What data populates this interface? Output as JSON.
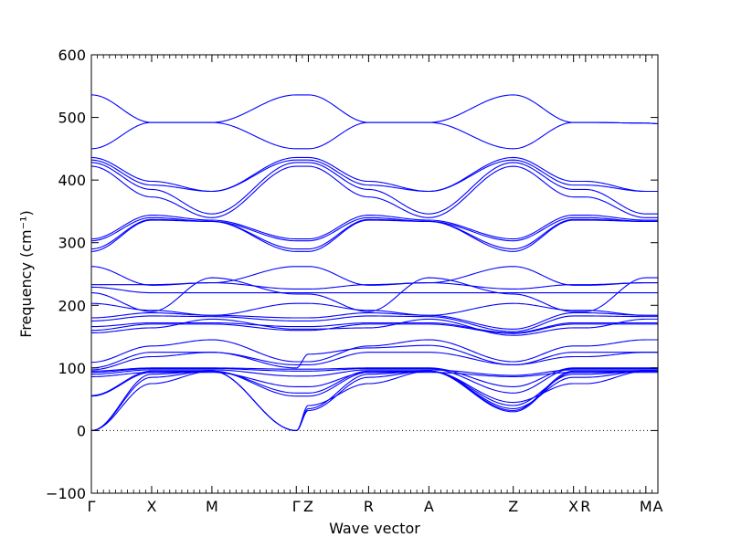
{
  "chart_data": {
    "type": "line",
    "title": "",
    "xlabel": "Wave vector",
    "ylabel": "Frequency (cm⁻¹)",
    "ylim": [
      -100,
      600
    ],
    "yticks": [
      -100,
      0,
      100,
      200,
      300,
      400,
      500,
      600
    ],
    "ytick_labels": [
      "−100",
      "0",
      "100",
      "200",
      "300",
      "400",
      "500",
      "600"
    ],
    "grid": false,
    "zero_line": {
      "y": 0,
      "style": "dotted"
    },
    "line_color": "#0000ff",
    "high_symmetry_points": [
      {
        "label": "Γ",
        "x": 0.0
      },
      {
        "label": "X",
        "x": 0.5
      },
      {
        "label": "M",
        "x": 1.0
      },
      {
        "label": "Γ",
        "x": 1.7
      },
      {
        "label": "Z",
        "x": 1.8
      },
      {
        "label": "R",
        "x": 2.3
      },
      {
        "label": "A",
        "x": 2.8
      },
      {
        "label": "Z",
        "x": 3.5
      },
      {
        "label": "X",
        "x": 4.0
      },
      {
        "label": "R",
        "x": 4.1
      },
      {
        "label": "M",
        "x": 4.6
      },
      {
        "label": "A",
        "x": 4.7
      }
    ],
    "series": [
      {
        "x": [
          0,
          0.5,
          1,
          1.7,
          1.8,
          2.3,
          2.8,
          3.5,
          4,
          4.1,
          4.6,
          4.7
        ],
        "values": [
          536,
          492,
          492,
          536,
          536,
          492,
          492,
          536,
          492,
          492,
          491,
          490
        ]
      },
      {
        "x": [
          0,
          0.5,
          1,
          1.7,
          1.8,
          2.3,
          2.8,
          3.5,
          4,
          4.1,
          4.6,
          4.7
        ],
        "values": [
          450,
          492,
          492,
          450,
          450,
          492,
          492,
          450,
          492,
          492,
          491,
          490
        ]
      },
      {
        "x": [
          0,
          0.5,
          1,
          1.7,
          1.8,
          2.3,
          2.8,
          3.5,
          4,
          4.1,
          4.6,
          4.7
        ],
        "values": [
          436,
          398,
          382,
          436,
          436,
          398,
          382,
          436,
          398,
          398,
          382,
          382
        ]
      },
      {
        "x": [
          0,
          0.5,
          1,
          1.7,
          1.8,
          2.3,
          2.8,
          3.5,
          4,
          4.1,
          4.6,
          4.7
        ],
        "values": [
          432,
          392,
          382,
          432,
          432,
          392,
          382,
          432,
          392,
          392,
          382,
          382
        ]
      },
      {
        "x": [
          0,
          0.5,
          1,
          1.7,
          1.8,
          2.3,
          2.8,
          3.5,
          4,
          4.1,
          4.6,
          4.7
        ],
        "values": [
          428,
          385,
          346,
          428,
          428,
          385,
          346,
          428,
          385,
          385,
          346,
          346
        ]
      },
      {
        "x": [
          0,
          0.5,
          1,
          1.7,
          1.8,
          2.3,
          2.8,
          3.5,
          4,
          4.1,
          4.6,
          4.7
        ],
        "values": [
          422,
          373,
          340,
          422,
          422,
          373,
          340,
          422,
          373,
          373,
          340,
          340
        ]
      },
      {
        "x": [
          0,
          0.5,
          1,
          1.7,
          1.8,
          2.3,
          2.8,
          3.5,
          4,
          4.1,
          4.6,
          4.7
        ],
        "values": [
          306,
          344,
          336,
          306,
          306,
          344,
          336,
          306,
          344,
          344,
          336,
          336
        ]
      },
      {
        "x": [
          0,
          0.5,
          1,
          1.7,
          1.8,
          2.3,
          2.8,
          3.5,
          4,
          4.1,
          4.6,
          4.7
        ],
        "values": [
          303,
          340,
          334,
          303,
          303,
          340,
          334,
          303,
          340,
          340,
          334,
          334
        ]
      },
      {
        "x": [
          0,
          0.5,
          1,
          1.7,
          1.8,
          2.3,
          2.8,
          3.5,
          4,
          4.1,
          4.6,
          4.7
        ],
        "values": [
          290,
          337,
          334,
          290,
          290,
          337,
          334,
          290,
          337,
          337,
          334,
          334
        ]
      },
      {
        "x": [
          0,
          0.5,
          1,
          1.7,
          1.8,
          2.3,
          2.8,
          3.5,
          4,
          4.1,
          4.6,
          4.7
        ],
        "values": [
          286,
          336,
          334,
          286,
          286,
          336,
          334,
          286,
          336,
          336,
          334,
          334
        ]
      },
      {
        "x": [
          0,
          0.5,
          1,
          1.7,
          1.8,
          2.3,
          2.8,
          3.5,
          4,
          4.1,
          4.6,
          4.7
        ],
        "values": [
          262,
          232,
          236,
          262,
          262,
          232,
          236,
          262,
          232,
          232,
          236,
          236
        ]
      },
      {
        "x": [
          0,
          0.5,
          1,
          1.7,
          1.8,
          2.3,
          2.8,
          3.5,
          4,
          4.1,
          4.6,
          4.7
        ],
        "values": [
          233,
          233,
          236,
          226,
          226,
          233,
          236,
          226,
          233,
          233,
          236,
          236
        ]
      },
      {
        "x": [
          0,
          0.5,
          1,
          1.7,
          1.8,
          2.3,
          2.8,
          3.5,
          4,
          4.1,
          4.6,
          4.7
        ],
        "values": [
          229,
          220,
          220,
          220,
          220,
          220,
          220,
          220,
          220,
          220,
          220,
          220
        ]
      },
      {
        "x": [
          0,
          0.5,
          1,
          1.7,
          1.8,
          2.3,
          2.8,
          3.5,
          4,
          4.1,
          4.6,
          4.7
        ],
        "values": [
          220,
          190,
          244,
          218,
          218,
          190,
          244,
          218,
          190,
          190,
          244,
          244
        ]
      },
      {
        "x": [
          0,
          0.5,
          1,
          1.7,
          1.8,
          2.3,
          2.8,
          3.5,
          4,
          4.1,
          4.6,
          4.7
        ],
        "values": [
          203,
          192,
          184,
          203,
          203,
          192,
          184,
          203,
          192,
          192,
          184,
          184
        ]
      },
      {
        "x": [
          0,
          0.5,
          1,
          1.7,
          1.8,
          2.3,
          2.8,
          3.5,
          4,
          4.1,
          4.6,
          4.7
        ],
        "values": [
          180,
          188,
          184,
          180,
          180,
          188,
          184,
          162,
          188,
          188,
          184,
          184
        ]
      },
      {
        "x": [
          0,
          0.5,
          1,
          1.7,
          1.8,
          2.3,
          2.8,
          3.5,
          4,
          4.1,
          4.6,
          4.7
        ],
        "values": [
          175,
          183,
          182,
          175,
          175,
          183,
          182,
          158,
          183,
          183,
          182,
          182
        ]
      },
      {
        "x": [
          0,
          0.5,
          1,
          1.7,
          1.8,
          2.3,
          2.8,
          3.5,
          4,
          4.1,
          4.6,
          4.7
        ],
        "values": [
          166,
          172,
          172,
          166,
          166,
          172,
          172,
          156,
          172,
          172,
          172,
          172
        ]
      },
      {
        "x": [
          0,
          0.5,
          1,
          1.7,
          1.8,
          2.3,
          2.8,
          3.5,
          4,
          4.1,
          4.6,
          4.7
        ],
        "values": [
          160,
          170,
          170,
          160,
          160,
          170,
          170,
          155,
          170,
          170,
          170,
          170
        ]
      },
      {
        "x": [
          0,
          0.5,
          1,
          1.7,
          1.8,
          2.3,
          2.8,
          3.5,
          4,
          4.1,
          4.6,
          4.7
        ],
        "values": [
          156,
          164,
          178,
          162,
          162,
          164,
          178,
          152,
          164,
          164,
          178,
          178
        ]
      },
      {
        "x": [
          0,
          0.5,
          1,
          1.7,
          1.8,
          2.3,
          2.8,
          3.5,
          4,
          4.1,
          4.6,
          4.7
        ],
        "values": [
          109,
          135,
          145,
          110,
          110,
          135,
          145,
          110,
          135,
          135,
          145,
          145
        ]
      },
      {
        "x": [
          0,
          0.5,
          1,
          1.7,
          1.8,
          2.3,
          2.8,
          3.5,
          4,
          4.1,
          4.6,
          4.7
        ],
        "values": [
          100,
          125,
          125,
          105,
          105,
          125,
          125,
          105,
          125,
          125,
          125,
          125
        ]
      },
      {
        "x": [
          0,
          0.5,
          1,
          1.7,
          1.8,
          2.3,
          2.8,
          3.5,
          4,
          4.1,
          4.6,
          4.7
        ],
        "values": [
          97,
          118,
          125,
          100,
          122,
          132,
          136,
          105,
          118,
          118,
          125,
          125
        ]
      },
      {
        "x": [
          0,
          0.5,
          1,
          1.7,
          1.8,
          2.3,
          2.8,
          3.5,
          4,
          4.1,
          4.6,
          4.7
        ],
        "values": [
          95,
          100,
          100,
          98,
          98,
          100,
          100,
          70,
          100,
          100,
          100,
          100
        ]
      },
      {
        "x": [
          0,
          0.5,
          1,
          1.7,
          1.8,
          2.3,
          2.8,
          3.5,
          4,
          4.1,
          4.6,
          4.7
        ],
        "values": [
          93,
          99,
          99,
          95,
          95,
          99,
          99,
          60,
          99,
          99,
          99,
          99
        ]
      },
      {
        "x": [
          0,
          0.5,
          1,
          1.7,
          1.8,
          2.3,
          2.8,
          3.5,
          4,
          4.1,
          4.6,
          4.7
        ],
        "values": [
          90,
          97,
          97,
          87,
          87,
          97,
          97,
          88,
          97,
          97,
          97,
          97
        ]
      },
      {
        "x": [
          0,
          0.5,
          1,
          1.7,
          1.8,
          2.3,
          2.8,
          3.5,
          4,
          4.1,
          4.6,
          4.7
        ],
        "values": [
          86,
          93,
          93,
          70,
          70,
          93,
          93,
          86,
          93,
          93,
          93,
          93
        ]
      },
      {
        "x": [
          0,
          0.5,
          1,
          1.7,
          1.8,
          2.3,
          2.8,
          3.5,
          4,
          4.1,
          4.6,
          4.7
        ],
        "values": [
          56,
          95,
          95,
          60,
          60,
          95,
          95,
          32,
          95,
          95,
          95,
          95
        ]
      },
      {
        "x": [
          0,
          0.5,
          1,
          1.7,
          1.8,
          2.3,
          2.8,
          3.5,
          4,
          4.1,
          4.6,
          4.7
        ],
        "values": [
          55,
          93,
          95,
          55,
          55,
          93,
          95,
          30,
          93,
          93,
          95,
          95
        ]
      },
      {
        "x": [
          0,
          0.5,
          1,
          1.7,
          1.8,
          2.3,
          2.8,
          3.5,
          4,
          4.1,
          4.6,
          4.7
        ],
        "values": [
          0,
          90,
          95,
          0,
          35,
          90,
          95,
          40,
          90,
          90,
          95,
          95
        ]
      },
      {
        "x": [
          0,
          0.5,
          1,
          1.7,
          1.8,
          2.3,
          2.8,
          3.5,
          4,
          4.1,
          4.6,
          4.7
        ],
        "values": [
          0,
          85,
          95,
          0,
          32,
          85,
          95,
          35,
          85,
          85,
          95,
          95
        ]
      },
      {
        "x": [
          0,
          0.5,
          1,
          1.7,
          1.8,
          2.3,
          2.8,
          3.5,
          4,
          4.1,
          4.6,
          4.7
        ],
        "values": [
          0,
          75,
          95,
          0,
          40,
          75,
          95,
          45,
          75,
          75,
          95,
          95
        ]
      }
    ]
  }
}
